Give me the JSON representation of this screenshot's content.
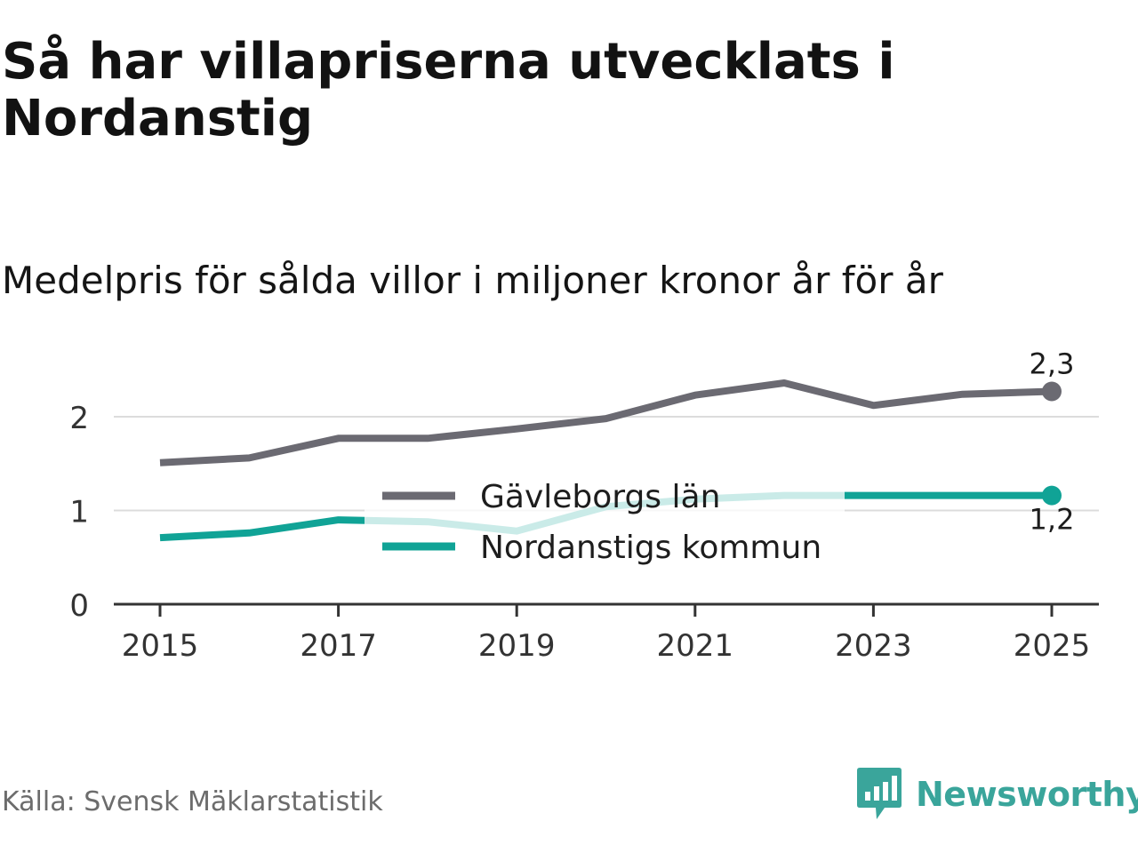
{
  "header": {
    "title": "Så har villapriserna utvecklats i Nordanstig",
    "subtitle": "Medelpris för sålda villor i miljoner kronor år för år"
  },
  "footer": {
    "source": "Källa: Svensk Mäklarstatistik",
    "brand": "Newsworthy"
  },
  "colors": {
    "gavleborg": "#6b6a72",
    "nordanstig": "#10a396",
    "grid": "#dcdcdc",
    "axis": "#333333",
    "brand": "#3aa59b"
  },
  "chart_data": {
    "type": "line",
    "title": "Så har villapriserna utvecklats i Nordanstig",
    "subtitle": "Medelpris för sålda villor i miljoner kronor år för år",
    "xlabel": "",
    "ylabel": "",
    "x": [
      2015,
      2016,
      2017,
      2018,
      2019,
      2020,
      2021,
      2022,
      2023,
      2024,
      2025
    ],
    "x_ticks": [
      "2015",
      "2017",
      "2019",
      "2021",
      "2023",
      "2025"
    ],
    "y_ticks": [
      "0",
      "1",
      "2"
    ],
    "ylim": [
      0,
      2.5
    ],
    "grid": true,
    "legend_position": "center",
    "series": [
      {
        "name": "Gävleborgs län",
        "color": "#6b6a72",
        "values": [
          1.51,
          1.56,
          1.77,
          1.77,
          1.87,
          1.98,
          2.23,
          2.36,
          2.12,
          2.24,
          2.27
        ],
        "end_label": "2,3"
      },
      {
        "name": "Nordanstigs kommun",
        "color": "#10a396",
        "values": [
          0.71,
          0.76,
          0.9,
          0.88,
          0.78,
          1.04,
          1.12,
          1.16,
          1.16,
          1.16,
          1.16
        ],
        "end_label": "1,2"
      }
    ]
  }
}
